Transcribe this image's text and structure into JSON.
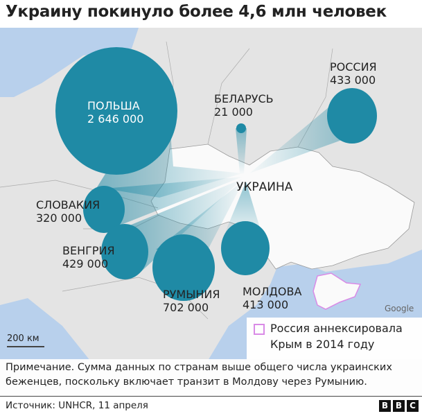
{
  "title": "Украину покинуло более 4,6 млн человек",
  "countries": [
    {
      "name": "ПОЛЬША",
      "value": "2 646 000"
    },
    {
      "name": "БЕЛАРУСЬ",
      "value": "21 000"
    },
    {
      "name": "РОССИЯ",
      "value": "433 000"
    },
    {
      "name": "СЛОВАКИЯ",
      "value": "320 000"
    },
    {
      "name": "ВЕНГРИЯ",
      "value": "429 000"
    },
    {
      "name": "РУМЫНИЯ",
      "value": "702 000"
    },
    {
      "name": "МОЛДОВА",
      "value": "413 000"
    }
  ],
  "origin": "УКРАИНА",
  "legend": {
    "text": "Россия аннексировала Крым в 2014 году",
    "color": "#d98ae6"
  },
  "scale": "200 км",
  "attribution": "Google",
  "note": "Примечание. Сумма данных по странам выше общего числа украинских беженцев, поскольку включает транзит в Молдову через Румынию.",
  "source": "Источник: UNHCR, 11 апреля",
  "logo": [
    "B",
    "B",
    "C"
  ],
  "colors": {
    "bubble": "#1f8aa5",
    "sea": "#b8d0ec",
    "land": "#e4e4e4",
    "ukraine": "#ffffff"
  }
}
